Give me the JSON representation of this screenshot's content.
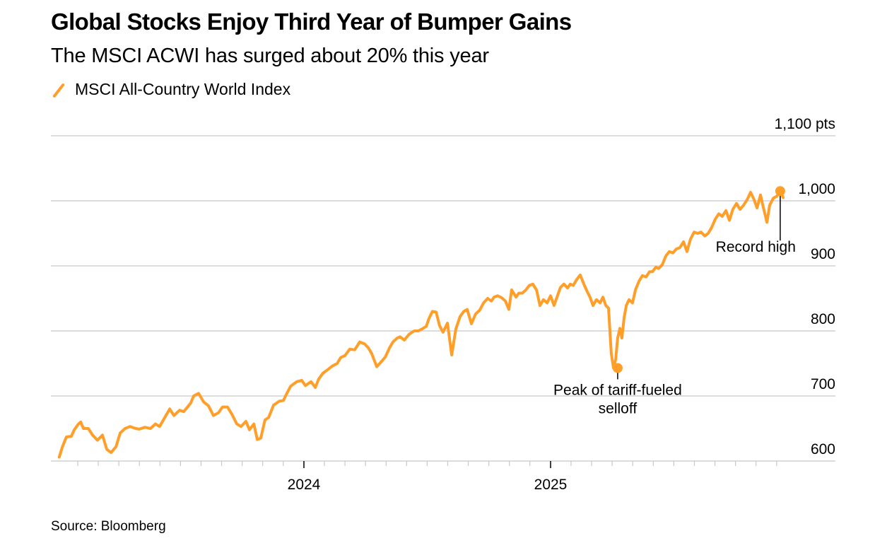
{
  "header": {
    "title": "Global Stocks Enjoy Third Year of Bumper Gains",
    "subtitle": "The MSCI ACWI has surged about 20% this year"
  },
  "legend": {
    "label": "MSCI All-Country World Index",
    "icon": "line-swatch-icon",
    "color": "#ff9e29"
  },
  "footer": {
    "source": "Source: Bloomberg"
  },
  "chart_data": {
    "type": "line",
    "title": "Global Stocks Enjoy Third Year of Bumper Gains",
    "subtitle": "The MSCI ACWI has surged about 20% this year",
    "xlabel": "",
    "ylabel": "pts",
    "ylim": [
      600,
      1100
    ],
    "xlim": [
      2022.965,
      2026.0
    ],
    "grid": true,
    "legend_position": "top-left",
    "y_ticks": [
      {
        "value": 600,
        "label": "600"
      },
      {
        "value": 700,
        "label": "700"
      },
      {
        "value": 800,
        "label": "800"
      },
      {
        "value": 900,
        "label": "900"
      },
      {
        "value": 1000,
        "label": "1,000"
      },
      {
        "value": 1100,
        "label": "1,100 pts"
      }
    ],
    "x_major_ticks": [
      {
        "value": 2024,
        "label": "2024"
      },
      {
        "value": 2025,
        "label": "2025"
      }
    ],
    "x_minor_tick_interval_months": 1,
    "x_minor_range": [
      2023.083,
      2025.917
    ],
    "series": [
      {
        "name": "MSCI All-Country World Index",
        "color": "#ff9e29",
        "x": [
          2023.008,
          2023.02,
          2023.037,
          2023.057,
          2023.069,
          2023.086,
          2023.095,
          2023.106,
          2023.126,
          2023.143,
          2023.163,
          2023.183,
          2023.201,
          2023.218,
          2023.238,
          2023.255,
          2023.275,
          2023.295,
          2023.318,
          2023.333,
          2023.355,
          2023.378,
          2023.398,
          2023.415,
          2023.433,
          2023.456,
          2023.473,
          2023.496,
          2023.513,
          2023.541,
          2023.553,
          2023.573,
          2023.593,
          2023.613,
          2023.633,
          2023.653,
          2023.67,
          2023.69,
          2023.708,
          2023.728,
          2023.745,
          2023.765,
          2023.779,
          2023.797,
          2023.811,
          2023.825,
          2023.842,
          2023.857,
          2023.877,
          2023.9,
          2023.917,
          2023.928,
          2023.946,
          2023.971,
          2023.991,
          2024.006,
          2024.029,
          2024.046,
          2024.06,
          2024.077,
          2024.095,
          2024.115,
          2024.135,
          2024.149,
          2024.166,
          2024.186,
          2024.206,
          2024.226,
          2024.246,
          2024.261,
          2024.275,
          2024.295,
          2024.312,
          2024.33,
          2024.347,
          2024.361,
          2024.378,
          2024.39,
          2024.407,
          2024.427,
          2024.447,
          2024.464,
          2024.479,
          2024.496,
          2024.507,
          2024.521,
          2024.536,
          2024.55,
          2024.564,
          2024.582,
          2024.599,
          2024.616,
          2024.633,
          2024.648,
          2024.662,
          2024.679,
          2024.696,
          2024.713,
          2024.728,
          2024.745,
          2024.76,
          2024.771,
          2024.785,
          2024.802,
          2024.817,
          2024.831,
          2024.842,
          2024.86,
          2024.871,
          2024.885,
          2024.9,
          2024.914,
          2024.928,
          2024.943,
          2024.957,
          2024.971,
          2024.986,
          2025.0,
          2025.014,
          2025.026,
          2025.04,
          2025.054,
          2025.069,
          2025.08,
          2025.092,
          2025.106,
          2025.12,
          2025.135,
          2025.149,
          2025.16,
          2025.172,
          2025.186,
          2025.201,
          2025.212,
          2025.224,
          2025.235,
          2025.246,
          2025.255,
          2025.264,
          2025.272,
          2025.281,
          2025.289,
          2025.298,
          2025.307,
          2025.318,
          2025.332,
          2025.344,
          2025.358,
          2025.372,
          2025.387,
          2025.401,
          2025.413,
          2025.427,
          2025.438,
          2025.453,
          2025.467,
          2025.481,
          2025.496,
          2025.51,
          2025.524,
          2025.539,
          2025.553,
          2025.567,
          2025.582,
          2025.596,
          2025.61,
          2025.625,
          2025.639,
          2025.653,
          2025.668,
          2025.682,
          2025.696,
          2025.711,
          2025.725,
          2025.739,
          2025.754,
          2025.768,
          2025.782,
          2025.797,
          2025.811,
          2025.825,
          2025.837,
          2025.851,
          2025.862,
          2025.877,
          2025.888,
          2025.903,
          2025.917,
          2025.931,
          2025.943
        ],
        "y": [
          606,
          621,
          637,
          638,
          648,
          657,
          660,
          650,
          650,
          640,
          632,
          640,
          618,
          613,
          622,
          643,
          650,
          653,
          650,
          649,
          652,
          650,
          657,
          653,
          665,
          680,
          670,
          678,
          676,
          689,
          700,
          704,
          691,
          685,
          670,
          674,
          683,
          683,
          672,
          657,
          653,
          661,
          648,
          657,
          633,
          635,
          663,
          667,
          686,
          692,
          693,
          702,
          715,
          722,
          724,
          716,
          722,
          713,
          726,
          735,
          740,
          746,
          750,
          759,
          762,
          772,
          771,
          783,
          780,
          774,
          765,
          745,
          752,
          760,
          774,
          783,
          789,
          791,
          786,
          795,
          800,
          800,
          803,
          807,
          819,
          830,
          829,
          808,
          798,
          812,
          763,
          803,
          822,
          830,
          833,
          811,
          826,
          832,
          843,
          850,
          846,
          852,
          854,
          851,
          846,
          833,
          863,
          852,
          858,
          858,
          863,
          870,
          872,
          863,
          839,
          848,
          843,
          854,
          839,
          852,
          867,
          872,
          866,
          872,
          870,
          879,
          886,
          872,
          860,
          852,
          839,
          848,
          843,
          852,
          839,
          835,
          765,
          743,
          756,
          789,
          804,
          789,
          820,
          839,
          848,
          843,
          863,
          876,
          885,
          883,
          891,
          891,
          898,
          896,
          902,
          915,
          922,
          920,
          926,
          928,
          937,
          922,
          941,
          952,
          950,
          952,
          946,
          950,
          959,
          972,
          980,
          976,
          985,
          970,
          987,
          996,
          987,
          993,
          1002,
          1013,
          1002,
          989,
          1009,
          991,
          967,
          993,
          1004,
          1007,
          1015,
          1005
        ]
      }
    ],
    "annotations": [
      {
        "label": "Record high",
        "x": 2025.931,
        "y": 1015,
        "type": "marker"
      },
      {
        "label": "Peak of tariff-fueled selloff",
        "label_lines": [
          "Peak of tariff-fueled",
          "selloff"
        ],
        "x": 2025.272,
        "y": 743,
        "type": "marker"
      }
    ]
  },
  "source": "Source: Bloomberg"
}
